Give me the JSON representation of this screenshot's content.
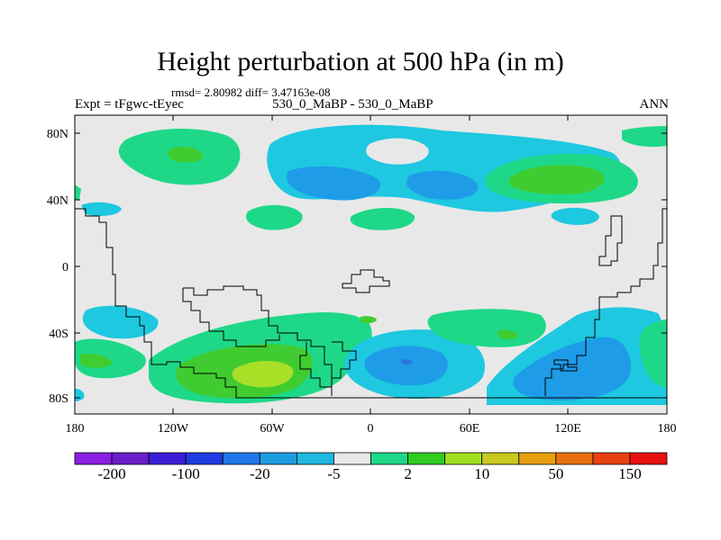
{
  "title": "Height perturbation at 500 hPa (in m)",
  "stats_line": "rmsd= 2.80982 diff= 3.47163e-08",
  "left_label": "Expt = tFgwc-tEyec",
  "center_label": "530_0_MaBP - 530_0_MaBP",
  "right_label": "ANN",
  "lat_ticks": [
    "80N",
    "40N",
    "0",
    "40S",
    "80S"
  ],
  "lon_ticks": [
    "180",
    "120W",
    "60W",
    "0",
    "60E",
    "120E",
    "180"
  ],
  "colorbar": {
    "colors": [
      "#8a1ee0",
      "#6a1ec8",
      "#3c1ed8",
      "#1e3ce0",
      "#1e78e8",
      "#1e9ce0",
      "#1eb8e0",
      "#e8e8e8",
      "#1ed888",
      "#30cc20",
      "#a0e020",
      "#c8c820",
      "#e8a010",
      "#e87010",
      "#e84010",
      "#e81010"
    ],
    "labels": [
      "-200",
      "-100",
      "-20",
      "-5",
      "2",
      "10",
      "50",
      "150"
    ]
  },
  "map_colors": {
    "neutral": "#e8e8e8",
    "light_blue": "#1ec8e0",
    "mid_blue": "#1e9ce8",
    "deep_blue": "#2878e0",
    "light_green": "#1ed888",
    "green": "#40cc30",
    "yellow_green": "#a8e028"
  }
}
